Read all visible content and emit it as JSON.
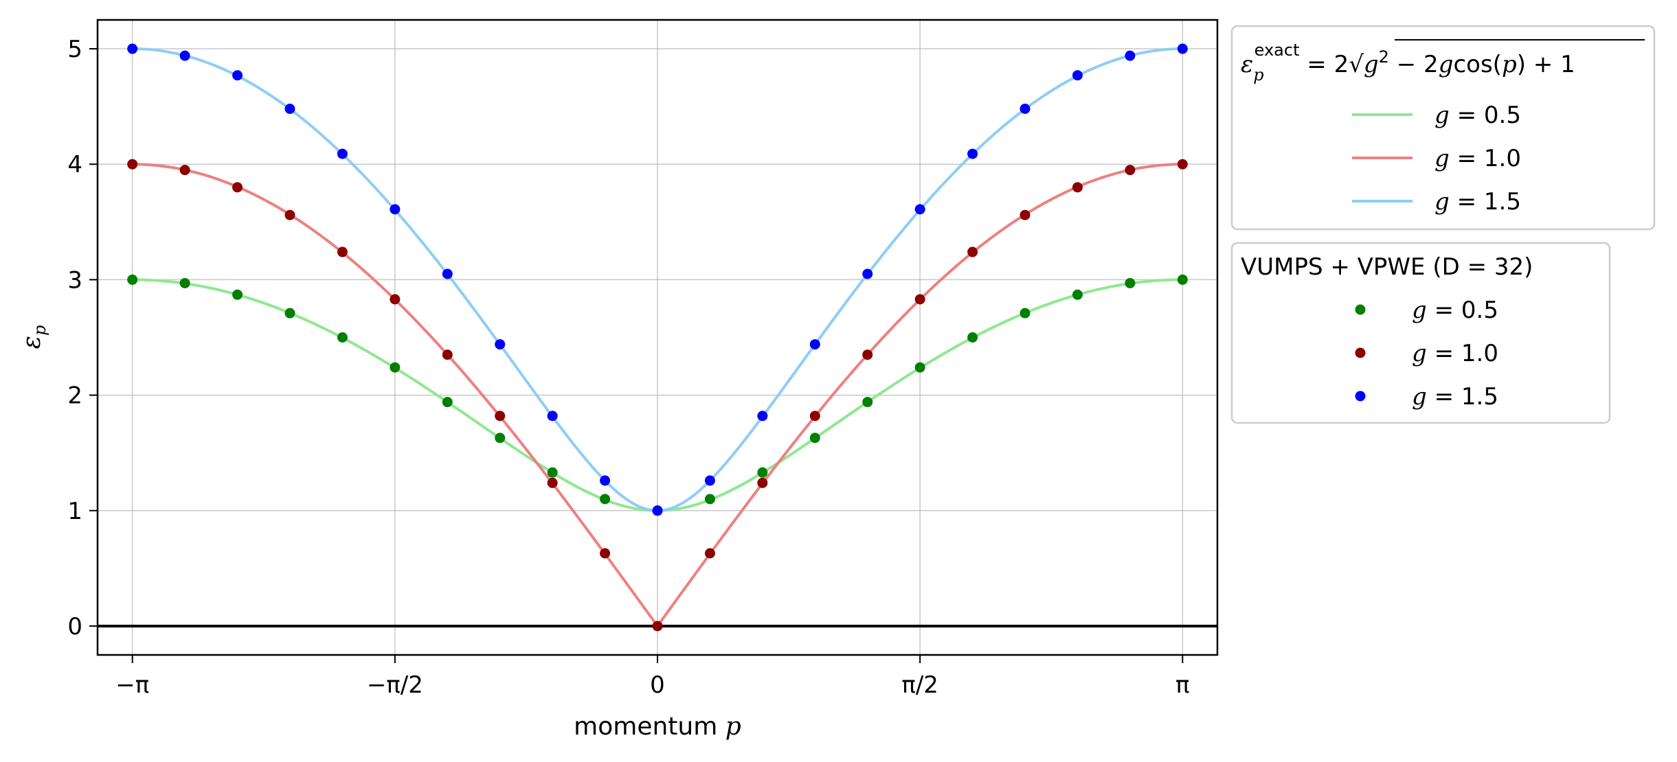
{
  "chart_data": {
    "type": "line",
    "xlabel": "momentum",
    "xlabel_var": "p",
    "ylabel_sym": "ε",
    "ylabel_sub": "p",
    "xlim": [
      -3.35,
      3.35
    ],
    "ylim": [
      -0.25,
      5.25
    ],
    "grid": true,
    "x_ticks": [
      {
        "value": -3.14159,
        "label": "−π"
      },
      {
        "value": -1.5708,
        "label": "−π/2"
      },
      {
        "value": 0,
        "label": "0"
      },
      {
        "value": 1.5708,
        "label": "π/2"
      },
      {
        "value": 3.14159,
        "label": "π"
      }
    ],
    "y_ticks": [
      {
        "value": 0,
        "label": "0"
      },
      {
        "value": 1,
        "label": "1"
      },
      {
        "value": 2,
        "label": "2"
      },
      {
        "value": 3,
        "label": "3"
      },
      {
        "value": 4,
        "label": "4"
      },
      {
        "value": 5,
        "label": "5"
      }
    ],
    "hline": {
      "y": 0,
      "color": "#000000"
    },
    "exact_formula": "ε_p^exact = 2√(g² − 2g cos(p) + 1)",
    "exact_series": [
      {
        "g": 0.5,
        "name": "g = 0.5",
        "color": "#90e890"
      },
      {
        "g": 1.0,
        "name": "g = 1.0",
        "color": "#ee8080"
      },
      {
        "g": 1.5,
        "name": "g = 1.5",
        "color": "#8fcdf5"
      }
    ],
    "numeric_title": "VUMPS + VPWE (D = 32)",
    "numeric_x": [
      -3.14159,
      -2.82743,
      -2.51327,
      -2.19911,
      -1.88496,
      -1.5708,
      -1.25664,
      -0.94248,
      -0.62832,
      -0.31416,
      0,
      0.31416,
      0.62832,
      0.94248,
      1.25664,
      1.5708,
      1.88496,
      2.19911,
      2.51327,
      2.82743,
      3.14159
    ],
    "numeric_series": [
      {
        "name": "g = 0.5",
        "color": "#008000",
        "values": [
          3.0,
          2.97,
          2.87,
          2.71,
          2.5,
          2.24,
          1.94,
          1.63,
          1.33,
          1.1,
          1.0,
          1.1,
          1.33,
          1.63,
          1.94,
          2.24,
          2.5,
          2.71,
          2.87,
          2.97,
          3.0
        ]
      },
      {
        "name": "g = 1.0",
        "color": "#8b0000",
        "values": [
          4.0,
          3.95,
          3.8,
          3.56,
          3.24,
          2.83,
          2.35,
          1.82,
          1.24,
          0.63,
          0.0,
          0.63,
          1.24,
          1.82,
          2.35,
          2.83,
          3.24,
          3.56,
          3.8,
          3.95,
          4.0
        ]
      },
      {
        "name": "g = 1.5",
        "color": "#0000ff",
        "values": [
          5.0,
          4.94,
          4.77,
          4.48,
          4.09,
          3.61,
          3.05,
          2.44,
          1.82,
          1.26,
          1.0,
          1.26,
          1.82,
          2.44,
          3.05,
          3.61,
          4.09,
          4.48,
          4.77,
          4.94,
          5.0
        ]
      }
    ],
    "legend_placement": "outside-right",
    "legend_entries_var": "g",
    "legend_entries_val": [
      "0.5",
      "1.0",
      "1.5"
    ]
  }
}
